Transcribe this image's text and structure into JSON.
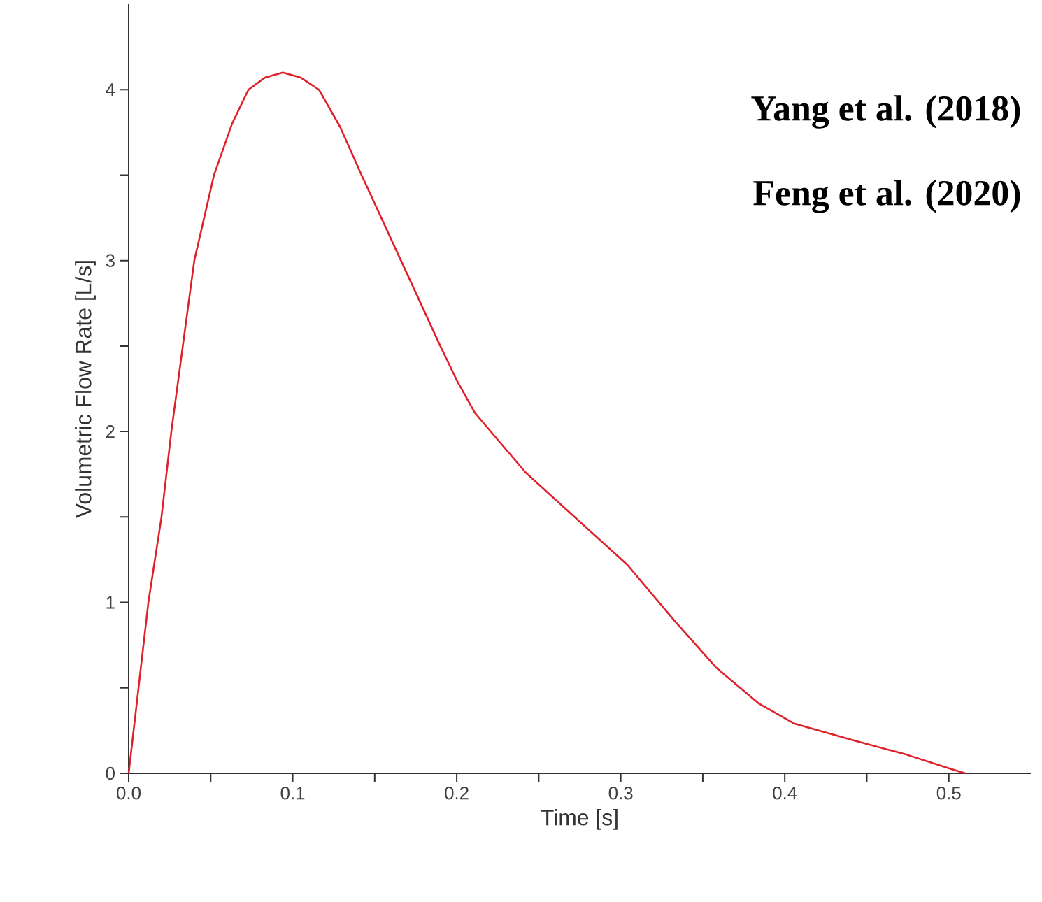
{
  "chart_data": {
    "type": "line",
    "xlabel": "Time [s]",
    "ylabel": "Volumetric Flow Rate [L/s]",
    "annotations": [
      "Yang et al. (2018)",
      "Feng et al. (2020)"
    ],
    "x": [
      0,
      0.012,
      0.02,
      0.026,
      0.04,
      0.052,
      0.063,
      0.073,
      0.083,
      0.094,
      0.105,
      0.116,
      0.129,
      0.142,
      0.166,
      0.19,
      0.2,
      0.211,
      0.242,
      0.273,
      0.304,
      0.333,
      0.358,
      0.384,
      0.406,
      0.443,
      0.474,
      0.5,
      0.51
    ],
    "series": [
      {
        "color": "#e0202a",
        "values": [
          0,
          1,
          1.5,
          2,
          3,
          3.5,
          3.8,
          4,
          4.07,
          4.1,
          4.07,
          4,
          3.78,
          3.5,
          3,
          2.5,
          2.3,
          2.11,
          1.76,
          1.49,
          1.22,
          0.89,
          0.62,
          0.41,
          0.29,
          0.19,
          0.11,
          0.03,
          0
        ]
      }
    ],
    "xlim": [
      0,
      0.55
    ],
    "ylim": [
      0,
      4.5
    ],
    "xticks": [
      {
        "value": 0,
        "label": "0.0"
      },
      {
        "value": 0.05,
        "label": null
      },
      {
        "value": 0.1,
        "label": "0.1"
      },
      {
        "value": 0.15,
        "label": null
      },
      {
        "value": 0.2,
        "label": "0.2"
      },
      {
        "value": 0.25,
        "label": null
      },
      {
        "value": 0.3,
        "label": "0.3"
      },
      {
        "value": 0.35,
        "label": null
      },
      {
        "value": 0.4,
        "label": "0.4"
      },
      {
        "value": 0.45,
        "label": null
      },
      {
        "value": 0.5,
        "label": "0.5"
      }
    ],
    "yticks": [
      0,
      {
        "value": 0.5,
        "label": null
      },
      1,
      {
        "value": 1.5,
        "label": null
      },
      2,
      {
        "value": 2.5,
        "label": null
      },
      3,
      {
        "value": 3.5,
        "label": null
      },
      4
    ],
    "grid": false,
    "marker": "none",
    "line_style": "solid"
  }
}
